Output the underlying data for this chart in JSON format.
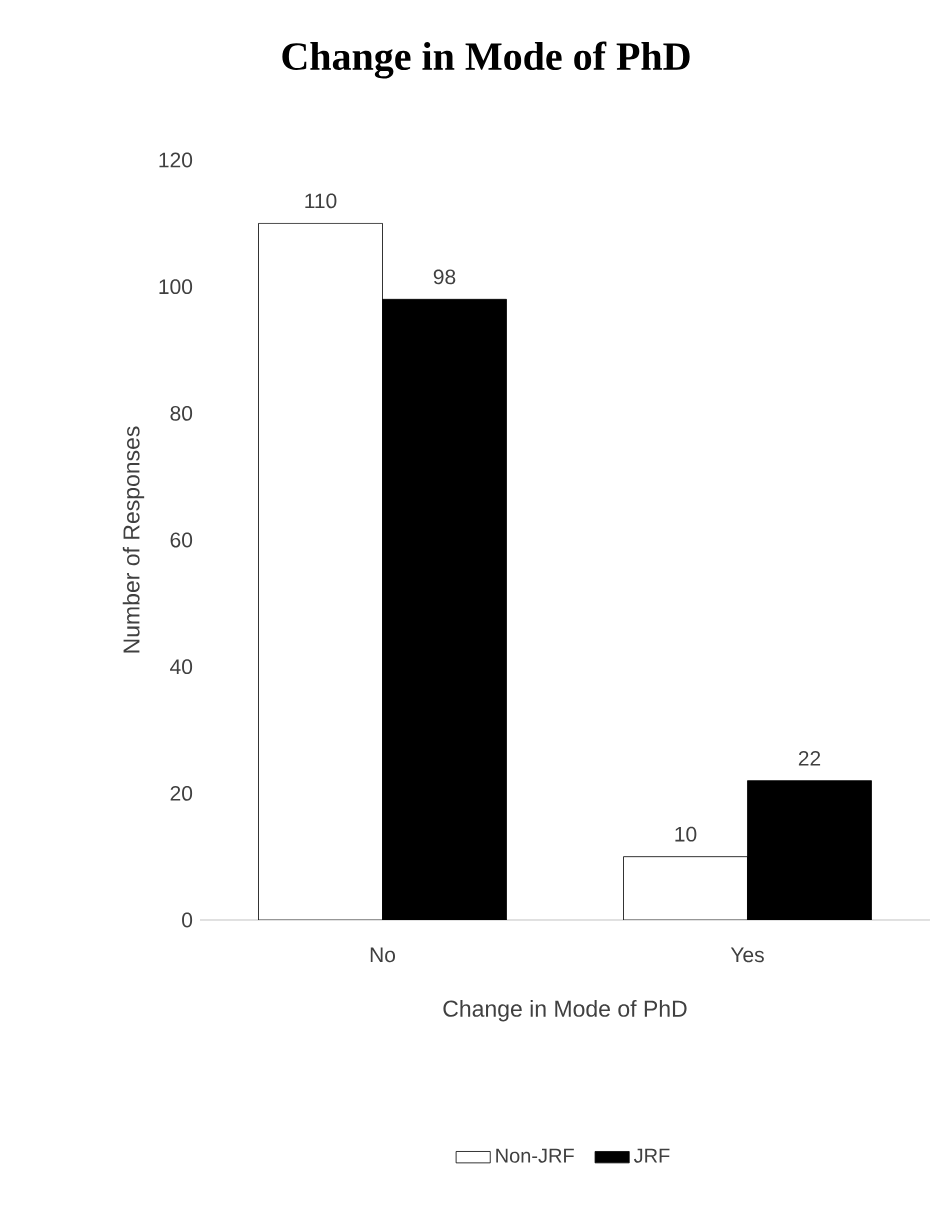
{
  "chart_data": {
    "type": "bar",
    "title": "Change in Mode of PhD",
    "xlabel": "Change in Mode of PhD",
    "ylabel": "Number of Responses",
    "categories": [
      "No",
      "Yes"
    ],
    "series": [
      {
        "name": "Non-JRF",
        "color": "#ffffff",
        "values": [
          110,
          10
        ]
      },
      {
        "name": "JRF",
        "color": "#000000",
        "values": [
          98,
          22
        ]
      }
    ],
    "ylim": [
      0,
      120
    ],
    "yticks": [
      0,
      20,
      40,
      60,
      80,
      100,
      120
    ],
    "data_labels": true,
    "legend": "bottom"
  }
}
